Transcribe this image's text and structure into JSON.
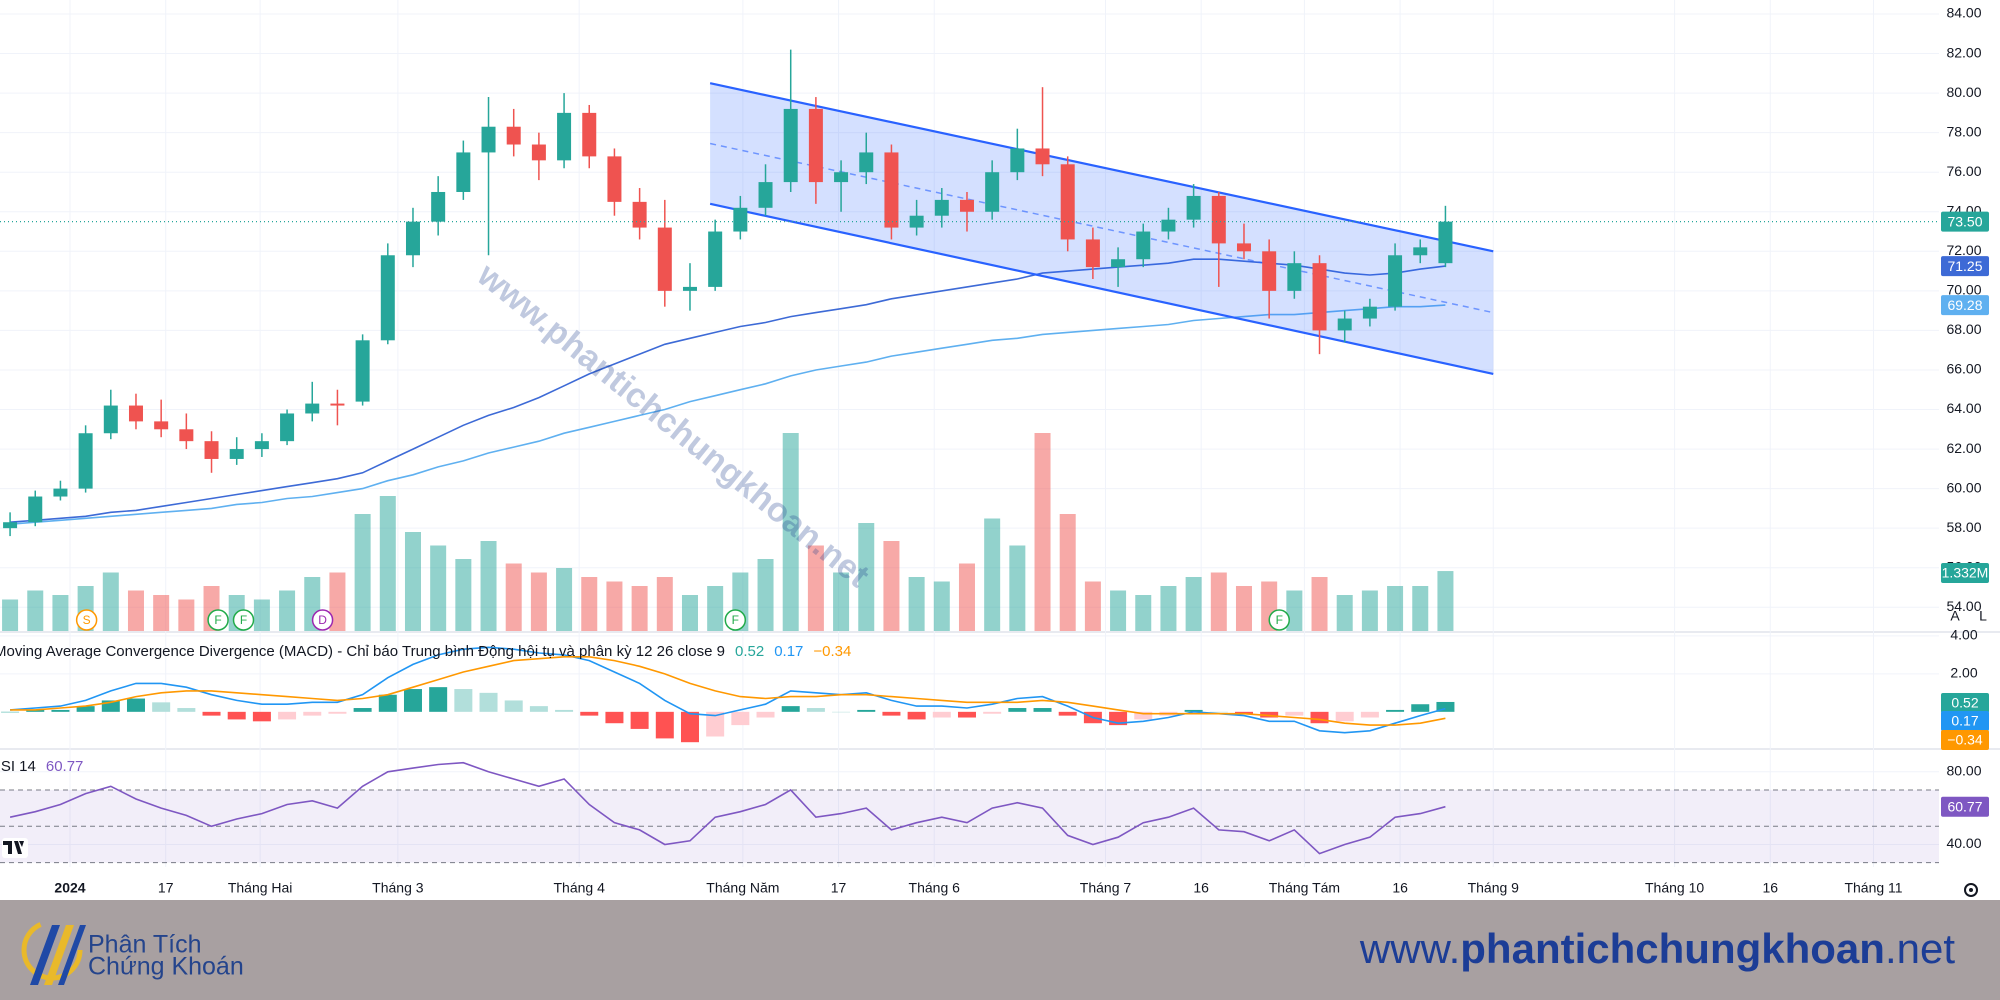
{
  "chart_data": [
    {
      "type": "candlestick",
      "ohlc": [
        [
          58.0,
          58.8,
          57.6,
          58.3
        ],
        [
          58.3,
          59.9,
          58.1,
          59.6
        ],
        [
          59.6,
          60.4,
          59.4,
          60.0
        ],
        [
          60.0,
          63.2,
          59.8,
          62.8
        ],
        [
          62.8,
          65.0,
          62.5,
          64.2
        ],
        [
          64.2,
          64.8,
          63.0,
          63.4
        ],
        [
          63.4,
          64.5,
          62.6,
          63.0
        ],
        [
          63.0,
          63.8,
          62.0,
          62.4
        ],
        [
          62.4,
          62.9,
          60.8,
          61.5
        ],
        [
          61.5,
          62.6,
          61.2,
          62.0
        ],
        [
          62.0,
          62.8,
          61.6,
          62.4
        ],
        [
          62.4,
          64.0,
          62.2,
          63.8
        ],
        [
          63.8,
          65.4,
          63.4,
          64.3
        ],
        [
          64.3,
          65.0,
          63.2,
          64.2
        ],
        [
          64.4,
          67.8,
          64.2,
          67.5
        ],
        [
          67.5,
          72.4,
          67.3,
          71.8
        ],
        [
          71.8,
          74.2,
          71.2,
          73.5
        ],
        [
          73.5,
          75.8,
          72.8,
          75.0
        ],
        [
          75.0,
          77.6,
          74.6,
          77.0
        ],
        [
          77.0,
          79.8,
          71.8,
          78.3
        ],
        [
          78.3,
          79.2,
          76.8,
          77.4
        ],
        [
          77.4,
          78.0,
          75.6,
          76.6
        ],
        [
          76.6,
          80.0,
          76.2,
          79.0
        ],
        [
          79.0,
          79.4,
          76.2,
          76.8
        ],
        [
          76.8,
          77.2,
          73.8,
          74.5
        ],
        [
          74.5,
          75.2,
          72.6,
          73.2
        ],
        [
          73.2,
          74.6,
          69.2,
          70.0
        ],
        [
          70.0,
          71.4,
          69.0,
          70.2
        ],
        [
          70.2,
          73.6,
          70.0,
          73.0
        ],
        [
          73.0,
          74.8,
          72.6,
          74.2
        ],
        [
          74.2,
          76.4,
          73.8,
          75.5
        ],
        [
          75.5,
          82.2,
          75.0,
          79.2
        ],
        [
          79.2,
          79.8,
          74.4,
          75.5
        ],
        [
          75.5,
          76.6,
          74.0,
          76.0
        ],
        [
          76.0,
          78.0,
          75.4,
          77.0
        ],
        [
          77.0,
          77.4,
          72.6,
          73.2
        ],
        [
          73.2,
          74.6,
          72.8,
          73.8
        ],
        [
          73.8,
          75.2,
          73.2,
          74.6
        ],
        [
          74.6,
          75.0,
          73.0,
          74.0
        ],
        [
          74.0,
          76.6,
          73.6,
          76.0
        ],
        [
          76.0,
          78.2,
          75.6,
          77.2
        ],
        [
          77.2,
          80.3,
          75.8,
          76.4
        ],
        [
          76.4,
          76.8,
          72.0,
          72.6
        ],
        [
          72.6,
          73.2,
          70.6,
          71.2
        ],
        [
          71.2,
          72.2,
          70.2,
          71.6
        ],
        [
          71.6,
          73.4,
          71.2,
          73.0
        ],
        [
          73.0,
          74.2,
          72.6,
          73.6
        ],
        [
          73.6,
          75.4,
          73.2,
          74.8
        ],
        [
          74.8,
          75.0,
          70.2,
          72.4
        ],
        [
          72.4,
          73.4,
          71.6,
          72.0
        ],
        [
          72.0,
          72.6,
          68.6,
          70.0
        ],
        [
          70.0,
          72.0,
          69.6,
          71.4
        ],
        [
          71.4,
          71.8,
          66.8,
          68.0
        ],
        [
          68.0,
          69.0,
          67.4,
          68.6
        ],
        [
          68.6,
          69.6,
          68.2,
          69.2
        ],
        [
          69.2,
          72.4,
          69.0,
          71.8
        ],
        [
          71.8,
          72.6,
          71.4,
          72.2
        ],
        [
          71.4,
          74.3,
          71.2,
          73.5
        ]
      ],
      "up_color": "#26a69a",
      "down_color": "#ef5350",
      "close_label": "73.50",
      "xlim": [
        -0.4,
        76.6
      ],
      "xticks": [
        {
          "value": 2.38,
          "label": "2024"
        },
        {
          "value": 6.18,
          "label": "17"
        },
        {
          "value": 9.93,
          "label": "Tháng Hai"
        },
        {
          "value": 15.4,
          "label": "Tháng 3"
        },
        {
          "value": 22.6,
          "label": "Tháng 4"
        },
        {
          "value": 29.1,
          "label": "Tháng Năm"
        },
        {
          "value": 32.9,
          "label": "17"
        },
        {
          "value": 36.7,
          "label": "Tháng 6"
        },
        {
          "value": 43.5,
          "label": "Tháng 7"
        },
        {
          "value": 47.3,
          "label": "16"
        },
        {
          "value": 51.4,
          "label": "Tháng Tám"
        },
        {
          "value": 55.2,
          "label": "16"
        },
        {
          "value": 58.9,
          "label": "Tháng 9"
        },
        {
          "value": 66.1,
          "label": "Tháng 10"
        },
        {
          "value": 69.9,
          "label": "16"
        },
        {
          "value": 74.0,
          "label": "Tháng 11"
        }
      ],
      "ylim": [
        52.8,
        84.0
      ],
      "yticks": [
        {
          "value": 84,
          "label": "84.00"
        },
        {
          "value": 82,
          "label": "82.00"
        },
        {
          "value": 80,
          "label": "80.00"
        },
        {
          "value": 78,
          "label": "78.00"
        },
        {
          "value": 76,
          "label": "76.00"
        },
        {
          "value": 74,
          "label": "74.00"
        },
        {
          "value": 72,
          "label": "72.00"
        },
        {
          "value": 70,
          "label": "70.00"
        },
        {
          "value": 68,
          "label": "68.00"
        },
        {
          "value": 66,
          "label": "66.00"
        },
        {
          "value": 64,
          "label": "64.00"
        },
        {
          "value": 62,
          "label": "62.00"
        },
        {
          "value": 60,
          "label": "60.00"
        },
        {
          "value": 58,
          "label": "58.00"
        },
        {
          "value": 56,
          "label": "56.00"
        },
        {
          "value": 54,
          "label": "54.00"
        }
      ],
      "grid": true,
      "volume": {
        "values": [
          0.7,
          0.9,
          0.8,
          1.0,
          1.3,
          0.9,
          0.8,
          0.7,
          1.0,
          0.8,
          0.7,
          0.9,
          1.2,
          1.3,
          2.6,
          3.0,
          2.2,
          1.9,
          1.6,
          2.0,
          1.5,
          1.3,
          1.4,
          1.2,
          1.1,
          1.0,
          1.2,
          0.8,
          1.0,
          1.3,
          1.6,
          4.4,
          1.9,
          1.3,
          2.4,
          2.0,
          1.2,
          1.1,
          1.5,
          2.5,
          1.9,
          4.4,
          2.6,
          1.1,
          0.9,
          0.8,
          1.0,
          1.2,
          1.3,
          1.0,
          1.1,
          0.9,
          1.2,
          0.8,
          0.9,
          1.0,
          1.0,
          1.332
        ],
        "value_label": "1.332M"
      },
      "series": [
        {
          "color": "#3d6ad6",
          "values": [
            58.3,
            58.4,
            58.5,
            58.6,
            58.8,
            58.9,
            59.1,
            59.3,
            59.5,
            59.7,
            59.9,
            60.1,
            60.3,
            60.5,
            60.8,
            61.4,
            62.0,
            62.6,
            63.2,
            63.7,
            64.1,
            64.6,
            65.2,
            65.8,
            66.3,
            66.8,
            67.3,
            67.6,
            67.9,
            68.2,
            68.4,
            68.7,
            68.9,
            69.1,
            69.3,
            69.6,
            69.8,
            70.0,
            70.2,
            70.4,
            70.6,
            70.9,
            71.0,
            71.1,
            71.2,
            71.3,
            71.4,
            71.6,
            71.6,
            71.5,
            71.4,
            71.3,
            71.1,
            70.9,
            70.8,
            70.9,
            71.1,
            71.25
          ]
        },
        {
          "color": "#5fb0f0",
          "values": [
            58.2,
            58.3,
            58.4,
            58.5,
            58.6,
            58.7,
            58.8,
            58.9,
            59.0,
            59.2,
            59.3,
            59.5,
            59.6,
            59.8,
            60.0,
            60.4,
            60.7,
            61.1,
            61.4,
            61.8,
            62.1,
            62.4,
            62.8,
            63.1,
            63.4,
            63.7,
            64.0,
            64.4,
            64.7,
            65.0,
            65.3,
            65.7,
            66.0,
            66.2,
            66.4,
            66.7,
            66.9,
            67.1,
            67.3,
            67.5,
            67.6,
            67.8,
            67.9,
            68.0,
            68.1,
            68.2,
            68.3,
            68.5,
            68.6,
            68.7,
            68.8,
            68.8,
            68.9,
            69.0,
            69.1,
            69.2,
            69.2,
            69.28
          ]
        }
      ],
      "channel": {
        "color": "#2962ff",
        "upper": [
          [
            27.8,
            80.5
          ],
          [
            58.9,
            72.0
          ]
        ],
        "lower": [
          [
            27.8,
            74.4
          ],
          [
            58.9,
            65.8
          ]
        ]
      },
      "events": [
        {
          "label": "S",
          "x": 3.04,
          "color": "#ff9800"
        },
        {
          "label": "F",
          "x": 8.26,
          "color": "#22ab4a"
        },
        {
          "label": "F",
          "x": 9.27,
          "color": "#22ab4a"
        },
        {
          "label": "D",
          "x": 12.41,
          "color": "#9c27b0"
        },
        {
          "label": "F",
          "x": 28.8,
          "color": "#22ab4a"
        },
        {
          "label": "F",
          "x": 50.4,
          "color": "#22ab4a"
        }
      ],
      "watermark": "www.phantichchungkhoan.net"
    },
    {
      "type": "macd",
      "title": "Moving Average Convergence Divergence (MACD) - Chỉ báo Trung bình Động hội tụ và phân kỳ",
      "params": "12 26 close 9",
      "ylim": [
        -1.8,
        4.1
      ],
      "yticks": [
        {
          "value": 4,
          "label": "4.00"
        },
        {
          "value": 2,
          "label": "2.00"
        }
      ],
      "histogram": {
        "color": "#26a69a",
        "values": [
          0.0,
          0.1,
          0.1,
          0.3,
          0.6,
          0.7,
          0.5,
          0.2,
          -0.2,
          -0.4,
          -0.5,
          -0.4,
          -0.2,
          -0.1,
          0.2,
          0.9,
          1.2,
          1.3,
          1.2,
          1.0,
          0.6,
          0.3,
          0.1,
          -0.2,
          -0.6,
          -0.9,
          -1.4,
          -1.6,
          -1.3,
          -0.7,
          -0.3,
          0.3,
          0.2,
          0.0,
          0.1,
          -0.2,
          -0.4,
          -0.3,
          -0.3,
          -0.1,
          0.2,
          0.2,
          -0.2,
          -0.6,
          -0.7,
          -0.4,
          -0.2,
          0.1,
          0.0,
          -0.1,
          -0.3,
          -0.2,
          -0.6,
          -0.5,
          -0.3,
          0.1,
          0.4,
          0.52
        ]
      },
      "series": [
        {
          "color": "#2196f3",
          "values": [
            0.1,
            0.2,
            0.3,
            0.6,
            1.1,
            1.5,
            1.5,
            1.3,
            0.9,
            0.6,
            0.4,
            0.4,
            0.5,
            0.5,
            0.9,
            1.8,
            2.5,
            3.0,
            3.3,
            3.4,
            3.3,
            3.1,
            3.0,
            2.7,
            2.1,
            1.5,
            0.6,
            -0.1,
            -0.2,
            0.1,
            0.4,
            1.1,
            1.0,
            0.9,
            1.0,
            0.6,
            0.3,
            0.3,
            0.2,
            0.4,
            0.7,
            0.8,
            0.3,
            -0.3,
            -0.6,
            -0.5,
            -0.3,
            0.0,
            -0.1,
            -0.2,
            -0.5,
            -0.5,
            -1.0,
            -1.1,
            -1.0,
            -0.6,
            -0.2,
            0.17
          ]
        },
        {
          "color": "#ff9800",
          "values": [
            0.1,
            0.1,
            0.2,
            0.3,
            0.5,
            0.8,
            1.0,
            1.1,
            1.1,
            1.0,
            0.9,
            0.8,
            0.7,
            0.6,
            0.7,
            0.9,
            1.3,
            1.7,
            2.1,
            2.4,
            2.7,
            2.8,
            2.9,
            2.9,
            2.7,
            2.4,
            2.0,
            1.5,
            1.1,
            0.8,
            0.7,
            0.8,
            0.8,
            0.9,
            0.9,
            0.8,
            0.7,
            0.6,
            0.5,
            0.5,
            0.5,
            0.6,
            0.5,
            0.3,
            0.1,
            -0.1,
            -0.1,
            -0.1,
            -0.1,
            -0.1,
            -0.2,
            -0.3,
            -0.4,
            -0.6,
            -0.7,
            -0.7,
            -0.6,
            -0.34
          ],
          "value_label": "−0.34"
        }
      ]
    },
    {
      "type": "rsi",
      "title": "RSI 14",
      "color": "#7e57c2",
      "ylim": [
        27.6,
        90.6
      ],
      "yticks": [
        {
          "value": 80,
          "label": "80.00"
        },
        {
          "value": 40,
          "label": "40.00"
        }
      ],
      "bands": [
        70,
        50,
        30
      ],
      "values": [
        55,
        58,
        62,
        68,
        72,
        65,
        60,
        56,
        50,
        54,
        57,
        62,
        64,
        60,
        72,
        80,
        82,
        84,
        85,
        80,
        76,
        72,
        76,
        62,
        52,
        48,
        40,
        42,
        55,
        58,
        62,
        70,
        55,
        57,
        60,
        48,
        52,
        55,
        52,
        60,
        63,
        60,
        45,
        40,
        44,
        52,
        55,
        60,
        48,
        47,
        42,
        48,
        35,
        40,
        44,
        55,
        57,
        60.77
      ]
    }
  ],
  "toolbar": [
    "A",
    "L"
  ],
  "footer": {
    "logo_line1": "Phân Tích",
    "logo_line2": "Chứng Khoán",
    "site_prefix": "www.",
    "site_name": "phantichchungkhoan",
    "site_suffix": ".net"
  }
}
